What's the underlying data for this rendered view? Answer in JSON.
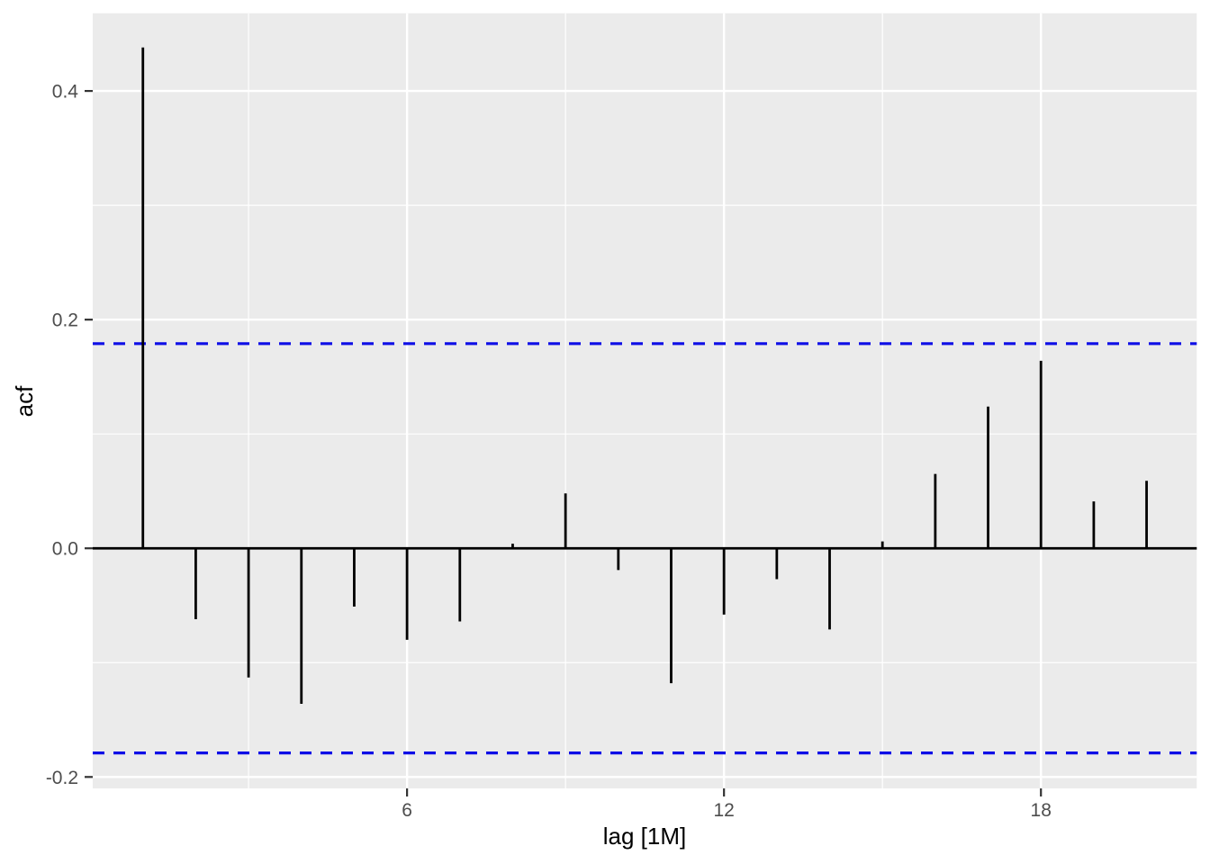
{
  "chart_data": {
    "type": "bar",
    "subtype": "acf-lollipop",
    "title": "",
    "xlabel": "lag [1M]",
    "ylabel": "acf",
    "x": [
      1,
      2,
      3,
      4,
      5,
      6,
      7,
      8,
      9,
      10,
      11,
      12,
      13,
      14,
      15,
      16,
      17,
      18,
      19,
      20
    ],
    "values": [
      0.438,
      -0.062,
      -0.113,
      -0.136,
      -0.051,
      -0.08,
      -0.064,
      0.004,
      0.048,
      -0.019,
      -0.118,
      -0.058,
      -0.027,
      -0.071,
      0.006,
      0.065,
      0.124,
      0.164,
      0.041,
      0.059
    ],
    "confidence_bound_upper": 0.179,
    "confidence_bound_lower": -0.179,
    "x_ticks": {
      "values": [
        6,
        12,
        18
      ],
      "labels": [
        "6",
        "12",
        "18"
      ]
    },
    "y_ticks": {
      "values": [
        -0.2,
        0.0,
        0.2,
        0.4
      ],
      "labels": [
        "-0.2",
        "0.0",
        "0.2",
        "0.4"
      ]
    },
    "x_minor_gridlines": [
      3,
      9,
      15
    ],
    "y_minor_gridlines": [
      -0.1,
      0.1,
      0.3
    ],
    "xlim": [
      0.05,
      20.95
    ],
    "ylim": [
      -0.21,
      0.468
    ],
    "grid": true,
    "legend": "none",
    "colors": {
      "panel_background": "#EBEBEB",
      "gridline": "#FFFFFF",
      "bar": "#000000",
      "zero_line": "#000000",
      "ci_line": "#0E0EE6",
      "tick_label": "#4D4D4D",
      "tick_mark": "#333333",
      "axis_title": "#000000",
      "page_background": "#FFFFFF"
    }
  }
}
